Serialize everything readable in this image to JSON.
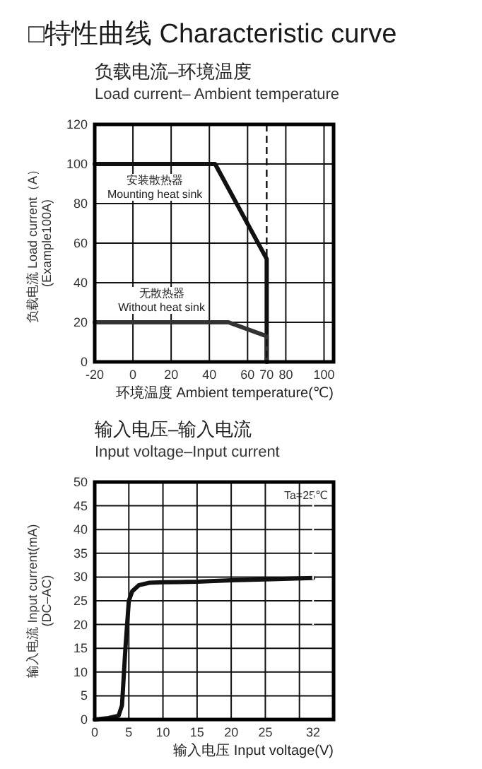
{
  "chart_data": [
    {
      "type": "line",
      "title": "负载电流–环境温度",
      "subtitle": "Load current– Ambient temperature",
      "xlabel": "环境温度 Ambient temperature(℃)",
      "ylabel": "负载电流 Load current（A）\n(Example100A)",
      "annotations": [
        "□特性曲线 Characteristic curve"
      ],
      "xlim": [
        -20,
        105
      ],
      "ylim": [
        0,
        120
      ],
      "xticks": [
        -20,
        0,
        20,
        40,
        60,
        70,
        80,
        100
      ],
      "yticks": [
        0,
        20,
        40,
        60,
        80,
        100,
        120
      ],
      "grid": true,
      "marker": "none",
      "line_style": "solid",
      "series": [
        {
          "name": "安装散热器\nMounting heat sink",
          "color": "#111111",
          "x": [
            -20,
            43,
            70,
            70
          ],
          "values": [
            100,
            100,
            52,
            0
          ]
        },
        {
          "name": "无散热器\nWithout heat sink",
          "color": "#333333",
          "x": [
            -20,
            50,
            70,
            70
          ],
          "values": [
            20,
            20,
            13,
            0
          ]
        }
      ],
      "ref_lines": [
        {
          "axis": "x",
          "value": 70,
          "label": null,
          "line_style": "dashed",
          "color": "#111111"
        }
      ]
    },
    {
      "type": "line",
      "title": "输入电压–输入电流",
      "subtitle": "Input voltage–Input current",
      "xlabel": "输入电压 Input voltage(V)",
      "ylabel": "输入电流 Input current(mA)\n(DC–AC)",
      "annotations": [
        "Ta=25℃"
      ],
      "xlim": [
        0,
        35
      ],
      "ylim": [
        0,
        50
      ],
      "xticks": [
        0,
        5,
        10,
        15,
        20,
        25,
        {
          "value": 30,
          "label": null
        },
        32
      ],
      "yticks": [
        0,
        5,
        10,
        15,
        20,
        25,
        30,
        35,
        40,
        45,
        50
      ],
      "grid": true,
      "marker": "none",
      "line_style": "solid",
      "series": [
        {
          "color": "#111111",
          "x": [
            0,
            2,
            3.5,
            4,
            4.5,
            5,
            5.5,
            6.5,
            8,
            10,
            15,
            20,
            25,
            32
          ],
          "values": [
            0,
            0.3,
            0.8,
            3,
            15,
            25,
            27,
            28.3,
            28.8,
            28.9,
            29,
            29.3,
            29.5,
            29.8
          ]
        }
      ],
      "ref_lines": [
        {
          "axis": "x",
          "value": 32,
          "label": null,
          "line_style": "dashed",
          "color": "#ffffff"
        }
      ]
    }
  ]
}
